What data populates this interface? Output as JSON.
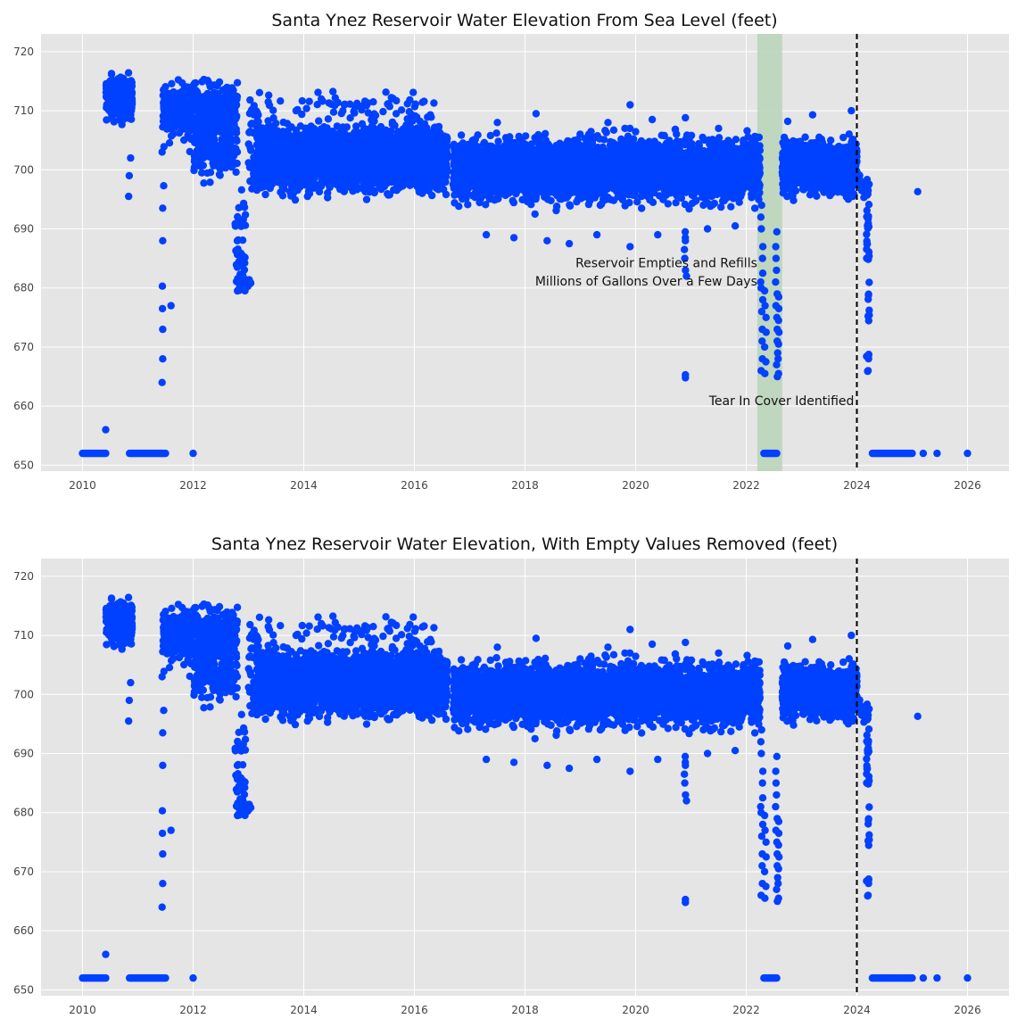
{
  "chart_data": [
    {
      "type": "scatter",
      "title": "Santa Ynez Reservoir Water Elevation From Sea Level (feet)",
      "xlabel": "",
      "ylabel": "",
      "xlim": [
        2009.25,
        2026.75
      ],
      "ylim": [
        649,
        723
      ],
      "x_ticks": [
        "2010",
        "2012",
        "2014",
        "2016",
        "2018",
        "2020",
        "2022",
        "2024",
        "2026"
      ],
      "y_ticks": [
        "650",
        "660",
        "670",
        "680",
        "690",
        "700",
        "710",
        "720"
      ],
      "grid": true,
      "point_color": "#0040ff",
      "background_color": "#e5e5e5",
      "vline": {
        "x": 2024.0,
        "style": "dashed",
        "color": "#000000"
      },
      "shaded_region": {
        "x0": 2022.2,
        "x1": 2022.65,
        "color": "#b8d4b8"
      },
      "annotations": [
        {
          "text": "Reservoir Empties and Refills",
          "x": 2022.2,
          "y": 683.5
        },
        {
          "text": "Millions of Gallons Over a Few Days",
          "x": 2022.2,
          "y": 680.4
        },
        {
          "text": "Tear In Cover Identified",
          "x": 2023.95,
          "y": 660.2
        }
      ],
      "approximate_point_clusters": [
        {
          "x_range": [
            2010.0,
            2010.4
          ],
          "y": 652
        },
        {
          "x_range": [
            2010.4,
            2010.9
          ],
          "y_range": [
            705,
            720
          ]
        },
        {
          "x_range": [
            2010.85,
            2011.5
          ],
          "y": 652
        },
        {
          "x_range": [
            2011.5,
            2012.8
          ],
          "y_range": [
            700,
            717
          ]
        },
        {
          "x_range": [
            2012.8,
            2013.0
          ],
          "y_range": [
            680,
            690
          ]
        },
        {
          "x_range": [
            2013.0,
            2016.5
          ],
          "y_range": [
            693,
            712
          ]
        },
        {
          "x_range": [
            2016.7,
            2022.2
          ],
          "y_range": [
            691,
            707
          ]
        },
        {
          "x_range": [
            2022.3,
            2022.55
          ],
          "y": 652
        },
        {
          "x_range": [
            2022.7,
            2024.0
          ],
          "y_range": [
            694,
            708
          ]
        },
        {
          "x_range": [
            2024.0,
            2024.25
          ],
          "y_range": [
            665,
            698
          ]
        },
        {
          "x_range": [
            2024.25,
            2025.0
          ],
          "y": 652
        },
        {
          "x": 2025.2,
          "y": 652
        },
        {
          "x": 2025.45,
          "y": 652
        },
        {
          "x": 2026.0,
          "y": 652
        },
        {
          "x": 2025.1,
          "y": 696.3
        }
      ]
    },
    {
      "type": "scatter",
      "title": "Santa Ynez Reservoir Water Elevation, With Empty Values Removed (feet)",
      "xlabel": "",
      "ylabel": "",
      "xlim": [
        2009.25,
        2026.75
      ],
      "ylim": [
        649,
        723
      ],
      "x_ticks": [
        "2010",
        "2012",
        "2014",
        "2016",
        "2018",
        "2020",
        "2022",
        "2024",
        "2026"
      ],
      "y_ticks": [
        "650",
        "660",
        "670",
        "680",
        "690",
        "700",
        "710",
        "720"
      ],
      "grid": true,
      "point_color": "#0040ff",
      "background_color": "#e5e5e5",
      "vline": {
        "x": 2024.0,
        "style": "dashed",
        "color": "#000000"
      }
    }
  ]
}
